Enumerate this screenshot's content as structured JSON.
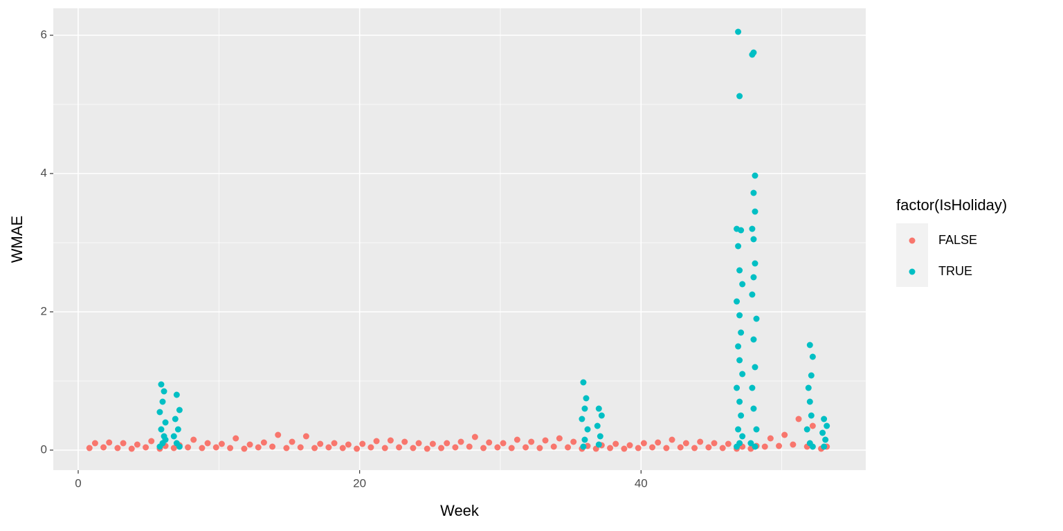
{
  "chart_data": {
    "type": "scatter",
    "x_label": "Week",
    "y_label": "WMAE",
    "legend_title": "factor(IsHoliday)",
    "legend_position": "right",
    "xlim": [
      -1.77,
      55.97
    ],
    "ylim": [
      -0.29,
      6.39
    ],
    "xticks": [
      0,
      20,
      40
    ],
    "yticks": [
      0,
      2,
      4,
      6
    ],
    "grid": true,
    "minor_grid": true,
    "series": [
      {
        "name": "FALSE",
        "color": "#F8766D",
        "x": [
          0.8,
          1.2,
          1.8,
          2.2,
          2.8,
          3.2,
          3.8,
          4.2,
          4.8,
          5.2,
          5.8,
          6.2,
          6.8,
          7.2,
          7.8,
          8.2,
          8.8,
          9.2,
          9.8,
          10.2,
          10.8,
          11.2,
          11.8,
          12.2,
          12.8,
          13.2,
          13.8,
          14.2,
          14.8,
          15.2,
          15.8,
          16.2,
          16.8,
          17.2,
          17.8,
          18.2,
          18.8,
          19.2,
          19.8,
          20.2,
          20.8,
          21.2,
          21.8,
          22.2,
          22.8,
          23.2,
          23.8,
          24.2,
          24.8,
          25.2,
          25.8,
          26.2,
          26.8,
          27.2,
          27.8,
          28.2,
          28.8,
          29.2,
          29.8,
          30.2,
          30.8,
          31.2,
          31.8,
          32.2,
          32.8,
          33.2,
          33.8,
          34.2,
          34.8,
          35.2,
          35.8,
          36.2,
          36.8,
          37.2,
          37.8,
          38.2,
          38.8,
          39.2,
          39.8,
          40.2,
          40.8,
          41.2,
          41.8,
          42.2,
          42.8,
          43.2,
          43.8,
          44.2,
          44.8,
          45.2,
          45.8,
          46.2,
          46.8,
          47.2,
          47.8,
          48.2,
          48.8,
          49.2,
          49.8,
          50.2,
          50.8,
          51.2,
          51.8,
          52.2,
          52.8,
          53.2
        ],
        "values": [
          0.03,
          0.1,
          0.04,
          0.11,
          0.03,
          0.1,
          0.02,
          0.08,
          0.04,
          0.13,
          0.02,
          0.06,
          0.03,
          0.07,
          0.04,
          0.15,
          0.03,
          0.1,
          0.04,
          0.09,
          0.03,
          0.17,
          0.02,
          0.08,
          0.04,
          0.11,
          0.05,
          0.22,
          0.03,
          0.12,
          0.04,
          0.2,
          0.03,
          0.09,
          0.04,
          0.1,
          0.03,
          0.08,
          0.02,
          0.09,
          0.04,
          0.13,
          0.03,
          0.14,
          0.04,
          0.12,
          0.03,
          0.1,
          0.02,
          0.09,
          0.03,
          0.1,
          0.04,
          0.12,
          0.05,
          0.19,
          0.03,
          0.11,
          0.04,
          0.1,
          0.03,
          0.15,
          0.04,
          0.12,
          0.03,
          0.14,
          0.05,
          0.17,
          0.04,
          0.12,
          0.02,
          0.06,
          0.02,
          0.07,
          0.03,
          0.09,
          0.02,
          0.07,
          0.03,
          0.1,
          0.04,
          0.11,
          0.03,
          0.15,
          0.04,
          0.1,
          0.03,
          0.12,
          0.04,
          0.1,
          0.03,
          0.09,
          0.02,
          0.05,
          0.02,
          0.06,
          0.05,
          0.17,
          0.06,
          0.22,
          0.08,
          0.45,
          0.05,
          0.35,
          0.02,
          0.05
        ]
      },
      {
        "name": "TRUE",
        "color": "#00BFC4",
        "x": [
          5.9,
          6.1,
          6.0,
          5.8,
          6.2,
          5.9,
          6.1,
          6.0,
          5.8,
          6.2,
          7.0,
          7.2,
          6.9,
          7.1,
          6.8,
          7.0,
          7.2,
          35.9,
          36.1,
          36.0,
          35.8,
          36.2,
          36.0,
          35.9,
          37.0,
          37.2,
          36.9,
          37.1,
          37.0,
          46.9,
          47.0,
          46.8,
          47.1,
          46.9,
          47.0,
          47.2,
          46.8,
          47.0,
          47.1,
          46.9,
          47.0,
          47.2,
          46.8,
          47.0,
          47.1,
          46.9,
          47.0,
          47.2,
          46.8,
          47.9,
          48.0,
          48.1,
          48.0,
          48.1,
          47.9,
          48.0,
          48.1,
          48.0,
          47.9,
          48.2,
          48.0,
          48.1,
          47.9,
          48.0,
          48.2,
          47.8,
          48.1,
          52.0,
          52.2,
          52.1,
          51.9,
          52.0,
          52.1,
          51.8,
          52.0,
          52.2,
          53.0,
          53.2,
          52.9,
          53.1,
          53.0
        ],
        "values": [
          0.95,
          0.85,
          0.7,
          0.55,
          0.4,
          0.3,
          0.2,
          0.1,
          0.05,
          0.15,
          0.8,
          0.58,
          0.45,
          0.3,
          0.2,
          0.1,
          0.05,
          0.98,
          0.75,
          0.6,
          0.45,
          0.3,
          0.15,
          0.05,
          0.6,
          0.5,
          0.35,
          0.2,
          0.08,
          6.05,
          5.12,
          3.2,
          3.18,
          2.95,
          2.6,
          2.4,
          2.15,
          1.95,
          1.7,
          1.5,
          1.3,
          1.1,
          0.9,
          0.7,
          0.5,
          0.3,
          0.1,
          0.2,
          0.05,
          5.72,
          5.75,
          3.97,
          3.72,
          3.45,
          3.2,
          3.05,
          2.7,
          2.5,
          2.25,
          1.9,
          1.6,
          1.2,
          0.9,
          0.6,
          0.3,
          0.1,
          0.05,
          1.52,
          1.35,
          1.08,
          0.9,
          0.7,
          0.5,
          0.3,
          0.1,
          0.05,
          0.45,
          0.35,
          0.25,
          0.15,
          0.05
        ]
      }
    ]
  }
}
